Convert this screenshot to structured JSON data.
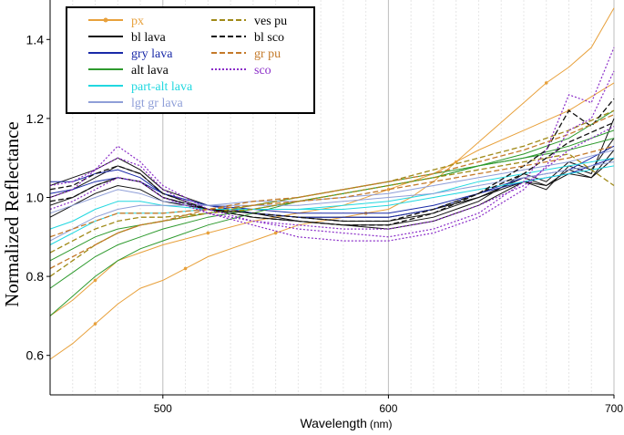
{
  "chart_data": {
    "type": "line",
    "title": "",
    "xlabel": "Wavelength",
    "xlabel_unit": "(nm)",
    "ylabel": "Normalized Reflectance",
    "xlim": [
      450,
      700
    ],
    "ylim": [
      0.5,
      1.5
    ],
    "x_ticks": [
      500,
      600,
      700
    ],
    "x_tick_labels": [
      "500",
      "600",
      "700"
    ],
    "x_minor_step": 10,
    "y_ticks": [
      0.6,
      0.8,
      1.0,
      1.2,
      1.4
    ],
    "y_tick_labels": [
      "0.6",
      "0.8",
      "1.0",
      "1.2",
      "1.4"
    ],
    "legend_position": "top-left",
    "legend": [
      {
        "key": "px",
        "label": "px",
        "color": "#e8a13c",
        "style": "solid-marker"
      },
      {
        "key": "bl_lava",
        "label": "bl lava",
        "color": "#111111",
        "style": "solid"
      },
      {
        "key": "gry_lava",
        "label": "gry lava",
        "color": "#1a2aa8",
        "style": "solid"
      },
      {
        "key": "alt_lava",
        "label": "alt lava",
        "color": "#2e9a2e",
        "style": "solid"
      },
      {
        "key": "part_alt",
        "label": "part-alt lava",
        "color": "#22d8e0",
        "style": "solid"
      },
      {
        "key": "lgt_gr",
        "label": "lgt gr lava",
        "color": "#8f9fd8",
        "style": "solid"
      },
      {
        "key": "ves_pu",
        "label": "ves pu",
        "color": "#a08a18",
        "style": "dash"
      },
      {
        "key": "bl_sco",
        "label": "bl sco",
        "color": "#111111",
        "style": "dash"
      },
      {
        "key": "gr_pu",
        "label": "gr pu",
        "color": "#c47a2a",
        "style": "dash"
      },
      {
        "key": "sco",
        "label": "sco",
        "color": "#8a2cc8",
        "style": "dot"
      }
    ],
    "series": [
      {
        "name": "px",
        "style_key": "px",
        "x": [
          450,
          460,
          470,
          480,
          490,
          500,
          510,
          520,
          530,
          540,
          550,
          560,
          570,
          580,
          590,
          600,
          610,
          620,
          630,
          640,
          650,
          660,
          670,
          680,
          690,
          700
        ],
        "y": [
          0.59,
          0.63,
          0.68,
          0.73,
          0.77,
          0.79,
          0.82,
          0.85,
          0.87,
          0.89,
          0.91,
          0.93,
          0.94,
          0.95,
          0.96,
          0.97,
          1.0,
          1.04,
          1.09,
          1.14,
          1.19,
          1.24,
          1.29,
          1.33,
          1.38,
          1.48
        ]
      },
      {
        "name": "px",
        "style_key": "px",
        "x": [
          450,
          460,
          470,
          480,
          490,
          500,
          520,
          540,
          560,
          580,
          600,
          620,
          640,
          660,
          680,
          700
        ],
        "y": [
          0.7,
          0.74,
          0.79,
          0.84,
          0.86,
          0.88,
          0.91,
          0.94,
          0.96,
          0.98,
          1.02,
          1.06,
          1.12,
          1.17,
          1.22,
          1.29
        ]
      },
      {
        "name": "bl lava",
        "style_key": "bl_lava",
        "x": [
          450,
          460,
          470,
          480,
          490,
          500,
          520,
          540,
          560,
          580,
          600,
          620,
          640,
          660,
          670,
          680,
          690,
          700
        ],
        "y": [
          1.0,
          1.02,
          1.05,
          1.08,
          1.06,
          1.01,
          0.97,
          0.95,
          0.94,
          0.93,
          0.93,
          0.95,
          0.99,
          1.06,
          1.04,
          1.09,
          1.07,
          1.15
        ]
      },
      {
        "name": "bl lava",
        "style_key": "bl_lava",
        "x": [
          450,
          460,
          470,
          480,
          490,
          500,
          520,
          540,
          560,
          580,
          600,
          620,
          640,
          660,
          670,
          680,
          690,
          700
        ],
        "y": [
          0.98,
          1.0,
          1.03,
          1.05,
          1.04,
          1.0,
          0.97,
          0.96,
          0.95,
          0.94,
          0.94,
          0.96,
          1.0,
          1.05,
          1.03,
          1.07,
          1.05,
          1.12
        ]
      },
      {
        "name": "bl lava",
        "style_key": "bl_lava",
        "x": [
          450,
          460,
          470,
          480,
          490,
          500,
          520,
          540,
          560,
          580,
          600,
          620,
          640,
          660,
          670,
          680,
          690,
          700
        ],
        "y": [
          1.03,
          1.05,
          1.07,
          1.1,
          1.07,
          1.02,
          0.98,
          0.96,
          0.94,
          0.93,
          0.92,
          0.94,
          0.98,
          1.04,
          1.02,
          1.08,
          1.06,
          1.2
        ]
      },
      {
        "name": "bl lava",
        "style_key": "bl_lava",
        "x": [
          450,
          460,
          470,
          480,
          490,
          500,
          520,
          540,
          560,
          580,
          600,
          620,
          640,
          660,
          670,
          680,
          690,
          700
        ],
        "y": [
          0.95,
          0.98,
          1.01,
          1.03,
          1.02,
          0.99,
          0.97,
          0.96,
          0.95,
          0.95,
          0.95,
          0.97,
          1.0,
          1.04,
          1.03,
          1.06,
          1.05,
          1.1
        ]
      },
      {
        "name": "gry lava",
        "style_key": "gry_lava",
        "x": [
          450,
          460,
          470,
          480,
          490,
          500,
          520,
          540,
          560,
          580,
          600,
          620,
          640,
          660,
          680,
          700
        ],
        "y": [
          1.04,
          1.04,
          1.06,
          1.07,
          1.05,
          1.01,
          0.98,
          0.96,
          0.95,
          0.95,
          0.95,
          0.97,
          1.01,
          1.05,
          1.07,
          1.13
        ]
      },
      {
        "name": "gry lava",
        "style_key": "gry_lava",
        "x": [
          450,
          460,
          470,
          480,
          490,
          500,
          520,
          540,
          560,
          580,
          600,
          620,
          640,
          660,
          680,
          700
        ],
        "y": [
          1.01,
          1.02,
          1.04,
          1.05,
          1.04,
          1.01,
          0.98,
          0.97,
          0.96,
          0.96,
          0.96,
          0.98,
          1.01,
          1.04,
          1.06,
          1.1
        ]
      },
      {
        "name": "alt lava",
        "style_key": "alt_lava",
        "x": [
          450,
          460,
          470,
          480,
          490,
          500,
          520,
          540,
          560,
          580,
          600,
          620,
          640,
          660,
          680,
          700
        ],
        "y": [
          0.7,
          0.75,
          0.8,
          0.84,
          0.87,
          0.89,
          0.93,
          0.96,
          0.99,
          1.01,
          1.03,
          1.05,
          1.08,
          1.11,
          1.15,
          1.22
        ]
      },
      {
        "name": "alt lava",
        "style_key": "alt_lava",
        "x": [
          450,
          460,
          470,
          480,
          490,
          500,
          520,
          540,
          560,
          580,
          600,
          620,
          640,
          660,
          680,
          700
        ],
        "y": [
          0.77,
          0.81,
          0.85,
          0.88,
          0.9,
          0.92,
          0.95,
          0.97,
          0.99,
          1.01,
          1.03,
          1.05,
          1.08,
          1.1,
          1.13,
          1.17
        ]
      },
      {
        "name": "alt lava",
        "style_key": "alt_lava",
        "x": [
          450,
          460,
          470,
          480,
          490,
          500,
          520,
          540,
          560,
          580,
          600,
          620,
          640,
          660,
          680,
          700
        ],
        "y": [
          0.84,
          0.87,
          0.9,
          0.92,
          0.93,
          0.94,
          0.96,
          0.98,
          1.0,
          1.02,
          1.04,
          1.06,
          1.08,
          1.1,
          1.12,
          1.15
        ]
      },
      {
        "name": "part-alt lava",
        "style_key": "part_alt",
        "x": [
          450,
          460,
          470,
          480,
          490,
          500,
          520,
          540,
          560,
          580,
          600,
          620,
          640,
          660,
          680,
          700
        ],
        "y": [
          0.88,
          0.91,
          0.94,
          0.96,
          0.96,
          0.96,
          0.97,
          0.97,
          0.97,
          0.98,
          0.99,
          1.01,
          1.04,
          1.06,
          1.08,
          1.1
        ]
      },
      {
        "name": "part-alt lava",
        "style_key": "part_alt",
        "x": [
          450,
          460,
          470,
          480,
          490,
          500,
          520,
          540,
          560,
          580,
          600,
          620,
          640,
          660,
          680,
          700
        ],
        "y": [
          0.92,
          0.94,
          0.97,
          0.99,
          0.99,
          0.98,
          0.97,
          0.97,
          0.97,
          0.97,
          0.98,
          1.0,
          1.02,
          1.04,
          1.06,
          1.08
        ]
      },
      {
        "name": "lgt gr lava",
        "style_key": "lgt_gr",
        "x": [
          450,
          460,
          470,
          480,
          490,
          500,
          520,
          540,
          560,
          580,
          600,
          620,
          640,
          660,
          680,
          700
        ],
        "y": [
          0.96,
          0.98,
          1.0,
          1.02,
          1.01,
          0.99,
          0.98,
          0.98,
          0.98,
          0.99,
          1.0,
          1.01,
          1.03,
          1.05,
          1.07,
          1.09
        ]
      },
      {
        "name": "lgt gr lava",
        "style_key": "lgt_gr",
        "x": [
          450,
          460,
          470,
          480,
          490,
          500,
          520,
          540,
          560,
          580,
          600,
          620,
          640,
          660,
          680,
          700
        ],
        "y": [
          0.89,
          0.92,
          0.95,
          0.97,
          0.98,
          0.98,
          0.98,
          0.99,
          0.99,
          1.0,
          1.01,
          1.03,
          1.05,
          1.07,
          1.09,
          1.12
        ]
      },
      {
        "name": "ves pu",
        "style_key": "ves_pu",
        "x": [
          450,
          460,
          470,
          480,
          490,
          500,
          520,
          540,
          560,
          580,
          600,
          620,
          640,
          660,
          680,
          700
        ],
        "y": [
          0.8,
          0.84,
          0.88,
          0.91,
          0.93,
          0.94,
          0.96,
          0.98,
          1.0,
          1.02,
          1.04,
          1.07,
          1.1,
          1.13,
          1.17,
          1.22
        ]
      },
      {
        "name": "ves pu",
        "style_key": "ves_pu",
        "x": [
          450,
          460,
          470,
          480,
          490,
          500,
          520,
          540,
          560,
          580,
          600,
          620,
          640,
          660,
          680,
          700
        ],
        "y": [
          0.86,
          0.89,
          0.92,
          0.94,
          0.95,
          0.95,
          0.96,
          0.97,
          0.99,
          1.01,
          1.03,
          1.05,
          1.07,
          1.09,
          1.11,
          1.03
        ]
      },
      {
        "name": "bl sco",
        "style_key": "bl_sco",
        "x": [
          450,
          460,
          470,
          480,
          490,
          500,
          520,
          540,
          560,
          580,
          600,
          620,
          640,
          660,
          670,
          680,
          690,
          700
        ],
        "y": [
          1.02,
          1.03,
          1.06,
          1.08,
          1.06,
          1.01,
          0.97,
          0.95,
          0.94,
          0.93,
          0.93,
          0.96,
          1.01,
          1.08,
          1.12,
          1.22,
          1.18,
          1.25
        ]
      },
      {
        "name": "bl sco",
        "style_key": "bl_sco",
        "x": [
          450,
          460,
          470,
          480,
          490,
          500,
          520,
          540,
          560,
          580,
          600,
          620,
          640,
          660,
          680,
          700
        ],
        "y": [
          0.99,
          1.0,
          1.03,
          1.05,
          1.04,
          1.0,
          0.97,
          0.96,
          0.95,
          0.94,
          0.94,
          0.97,
          1.01,
          1.06,
          1.14,
          1.19
        ]
      },
      {
        "name": "gr pu",
        "style_key": "gr_pu",
        "x": [
          450,
          460,
          470,
          480,
          490,
          500,
          520,
          540,
          560,
          580,
          600,
          620,
          640,
          660,
          680,
          700
        ],
        "y": [
          0.82,
          0.85,
          0.88,
          0.91,
          0.93,
          0.94,
          0.97,
          0.99,
          1.0,
          1.02,
          1.04,
          1.06,
          1.09,
          1.12,
          1.16,
          1.21
        ]
      },
      {
        "name": "gr pu",
        "style_key": "gr_pu",
        "x": [
          450,
          460,
          470,
          480,
          490,
          500,
          520,
          540,
          560,
          580,
          600,
          620,
          640,
          660,
          680,
          700
        ],
        "y": [
          0.9,
          0.92,
          0.94,
          0.96,
          0.96,
          0.96,
          0.97,
          0.98,
          0.99,
          1.0,
          1.02,
          1.04,
          1.06,
          1.08,
          1.1,
          1.13
        ]
      },
      {
        "name": "sco",
        "style_key": "sco",
        "x": [
          450,
          460,
          470,
          480,
          490,
          500,
          520,
          540,
          560,
          580,
          600,
          620,
          640,
          660,
          670,
          680,
          690,
          700
        ],
        "y": [
          1.0,
          1.02,
          1.07,
          1.13,
          1.09,
          1.03,
          0.97,
          0.94,
          0.92,
          0.91,
          0.9,
          0.92,
          0.96,
          1.04,
          1.12,
          1.26,
          1.24,
          1.38
        ]
      },
      {
        "name": "sco",
        "style_key": "sco",
        "x": [
          450,
          460,
          470,
          480,
          490,
          500,
          520,
          540,
          560,
          580,
          600,
          620,
          640,
          660,
          670,
          680,
          690,
          700
        ],
        "y": [
          1.03,
          1.04,
          1.07,
          1.1,
          1.08,
          1.02,
          0.96,
          0.93,
          0.9,
          0.89,
          0.89,
          0.91,
          0.95,
          1.02,
          1.08,
          1.17,
          1.2,
          1.32
        ]
      },
      {
        "name": "sco",
        "style_key": "sco",
        "x": [
          450,
          460,
          470,
          480,
          490,
          500,
          520,
          540,
          560,
          580,
          600,
          620,
          640,
          660,
          680,
          700
        ],
        "y": [
          0.97,
          0.99,
          1.02,
          1.05,
          1.04,
          1.0,
          0.96,
          0.94,
          0.93,
          0.92,
          0.92,
          0.94,
          0.98,
          1.03,
          1.12,
          1.18
        ]
      }
    ]
  }
}
